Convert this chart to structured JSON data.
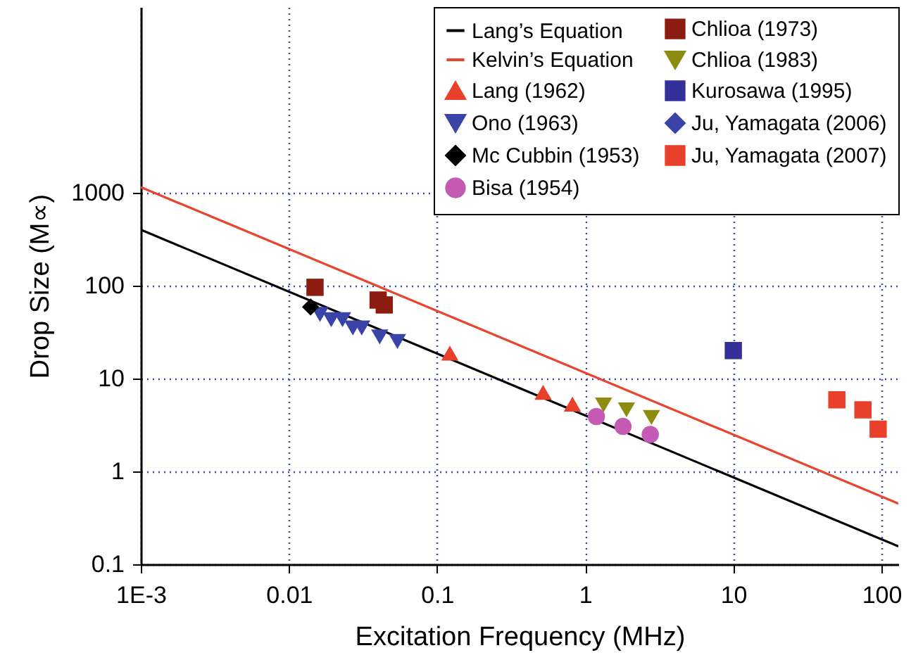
{
  "chart_data": {
    "type": "scatter",
    "xlabel": "Excitation Frequency (MHz)",
    "ylabel": "Drop Size (M∝)",
    "log": "xy",
    "grid": true,
    "legend": "top right",
    "xlim": [
      0.001,
      130
    ],
    "xticks": [
      {
        "value": 0.001,
        "label": "1E-3"
      },
      0.01,
      0.1,
      1,
      10,
      100
    ],
    "ylim": [
      0.1,
      100000
    ],
    "yticks": [
      0.1,
      1,
      10,
      100,
      1000
    ],
    "series": [
      {
        "name": "Lang’s Equation",
        "type": "line",
        "color": "#000000",
        "x": [
          0.001,
          130
        ],
        "values": [
          400,
          0.156
        ]
      },
      {
        "name": "Kelvin’s Equation",
        "type": "line",
        "color": "#e8442e",
        "x": [
          0.001,
          130
        ],
        "values": [
          1150,
          0.45
        ]
      },
      {
        "name": "Lang (1962)",
        "marker": "triangle",
        "color": "#e8402a",
        "x": [
          0.122,
          0.52,
          0.82
        ],
        "values": [
          18.8,
          7.1,
          5.3
        ]
      },
      {
        "name": "Ono (1963)",
        "marker": "triangle-down",
        "color": "#3a44a8",
        "x": [
          0.0162,
          0.0193,
          0.023,
          0.027,
          0.031,
          0.041,
          0.054
        ],
        "values": [
          49,
          43,
          43,
          35,
          35,
          28,
          25
        ]
      },
      {
        "name": "Mc Cubbin (1953)",
        "marker": "diamond",
        "color": "#000000",
        "x": [
          0.014
        ],
        "values": [
          59
        ]
      },
      {
        "name": "Bisa (1954)",
        "marker": "circle",
        "color": "#c45ab3",
        "x": [
          1.19,
          1.8,
          2.75
        ],
        "values": [
          3.9,
          3.05,
          2.5
        ]
      },
      {
        "name": "Chlioa (1973)",
        "marker": "square",
        "color": "#8c1c10",
        "x": [
          0.015,
          0.04,
          0.044
        ],
        "values": [
          96,
          70,
          62
        ]
      },
      {
        "name": "Chlioa (1983)",
        "marker": "triangle-down",
        "color": "#8c8c10",
        "x": [
          1.33,
          1.9,
          2.8
        ],
        "values": [
          5.2,
          4.6,
          3.8
        ]
      },
      {
        "name": "Kurosawa (1995)",
        "marker": "square",
        "color": "#33309a",
        "x": [
          10
        ],
        "values": [
          20
        ]
      },
      {
        "name": "Ju, Yamagata (2006)",
        "marker": "diamond",
        "color": "#3a44a8"
      },
      {
        "name": "Ju, Yamagata (2007)",
        "marker": "square",
        "color": "#e8402a",
        "x": [
          50,
          75,
          95
        ],
        "values": [
          5.9,
          4.6,
          2.85
        ]
      }
    ]
  }
}
